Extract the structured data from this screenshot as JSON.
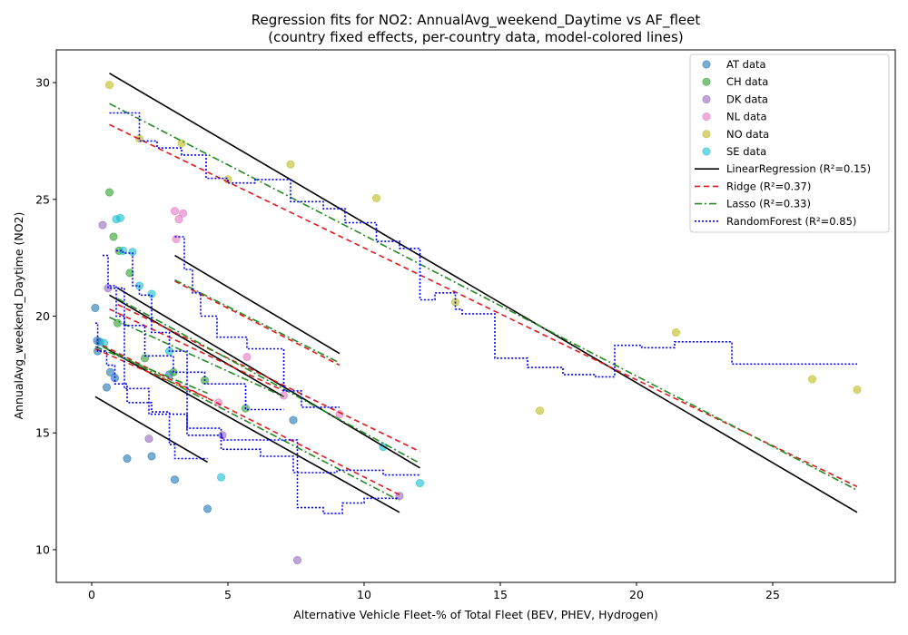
{
  "chart_data": {
    "type": "scatter",
    "title": "Regression fits for NO2: AnnualAvg_weekend_Daytime vs AF_fleet",
    "subtitle": "(country fixed effects, per-country data, model-colored lines)",
    "xlabel": "Alternative Vehicle Fleet-% of Total Fleet (BEV, PHEV, Hydrogen)",
    "ylabel": "AnnualAvg_weekend_Daytime (NO2)",
    "xlim": [
      -1.3,
      29.5
    ],
    "ylim": [
      8.6,
      31.4
    ],
    "xticks": [
      0,
      5,
      10,
      15,
      20,
      25
    ],
    "yticks": [
      10,
      15,
      20,
      25,
      30
    ],
    "grid": false,
    "legend_position": "top-right",
    "scatter_series": [
      {
        "name": "AT data",
        "color": "#1f77b4",
        "points": [
          [
            0.13,
            20.35
          ],
          [
            0.2,
            18.95
          ],
          [
            0.22,
            18.5
          ],
          [
            0.3,
            18.9
          ],
          [
            0.55,
            16.95
          ],
          [
            0.68,
            17.6
          ],
          [
            0.85,
            17.35
          ],
          [
            1.3,
            13.9
          ],
          [
            2.2,
            14.0
          ],
          [
            3.05,
            13.0
          ],
          [
            4.25,
            11.75
          ],
          [
            7.4,
            15.55
          ],
          [
            2.85,
            17.5
          ]
        ]
      },
      {
        "name": "CH data",
        "color": "#2ca02c",
        "points": [
          [
            0.65,
            25.3
          ],
          [
            0.8,
            23.4
          ],
          [
            1.0,
            22.8
          ],
          [
            1.4,
            21.85
          ],
          [
            0.95,
            19.7
          ],
          [
            1.95,
            18.2
          ],
          [
            3.0,
            17.6
          ],
          [
            4.15,
            17.25
          ],
          [
            5.65,
            16.05
          ]
        ]
      },
      {
        "name": "DK data",
        "color": "#9467bd",
        "points": [
          [
            0.4,
            23.9
          ],
          [
            0.6,
            21.2
          ],
          [
            2.1,
            14.75
          ],
          [
            4.8,
            14.9
          ],
          [
            7.55,
            9.55
          ],
          [
            11.3,
            12.3
          ]
        ]
      },
      {
        "name": "NL data",
        "color": "#e377c2",
        "points": [
          [
            3.05,
            24.5
          ],
          [
            3.2,
            24.15
          ],
          [
            3.35,
            24.4
          ],
          [
            3.1,
            23.3
          ],
          [
            5.7,
            18.25
          ],
          [
            4.65,
            16.3
          ],
          [
            7.05,
            16.6
          ],
          [
            9.1,
            15.8
          ]
        ]
      },
      {
        "name": "NO data",
        "color": "#bcbd22",
        "points": [
          [
            0.65,
            29.9
          ],
          [
            1.75,
            27.6
          ],
          [
            3.3,
            27.4
          ],
          [
            5.0,
            25.85
          ],
          [
            7.3,
            26.5
          ],
          [
            10.45,
            25.05
          ],
          [
            13.35,
            20.6
          ],
          [
            16.45,
            15.95
          ],
          [
            21.45,
            19.3
          ],
          [
            26.45,
            17.3
          ],
          [
            28.1,
            16.85
          ]
        ]
      },
      {
        "name": "SE data",
        "color": "#17becf",
        "points": [
          [
            0.9,
            24.15
          ],
          [
            1.05,
            24.2
          ],
          [
            1.15,
            22.8
          ],
          [
            1.5,
            22.75
          ],
          [
            1.75,
            21.3
          ],
          [
            2.2,
            20.95
          ],
          [
            0.45,
            18.85
          ],
          [
            2.85,
            18.5
          ],
          [
            4.75,
            13.1
          ],
          [
            10.7,
            14.4
          ],
          [
            12.05,
            12.85
          ]
        ]
      }
    ],
    "fit_lines": [
      {
        "name": "LinearRegression (R²=0.15)",
        "color": "#000000",
        "dash": "",
        "segments": [
          [
            [
              0.65,
              30.4
            ],
            [
              28.1,
              11.6
            ]
          ],
          [
            [
              3.05,
              22.6
            ],
            [
              9.1,
              18.4
            ]
          ],
          [
            [
              0.65,
              20.9
            ],
            [
              7.05,
              16.55
            ]
          ],
          [
            [
              0.95,
              21.2
            ],
            [
              12.05,
              13.5
            ]
          ],
          [
            [
              0.4,
              18.7
            ],
            [
              11.3,
              11.6
            ]
          ],
          [
            [
              0.13,
              16.55
            ],
            [
              4.25,
              13.75
            ]
          ]
        ]
      },
      {
        "name": "Ridge (R²=0.37)",
        "color": "#e31a1c",
        "dash": "6,4",
        "segments": [
          [
            [
              0.65,
              28.2
            ],
            [
              28.1,
              12.7
            ]
          ],
          [
            [
              3.05,
              21.5
            ],
            [
              9.1,
              17.9
            ]
          ],
          [
            [
              0.65,
              20.3
            ],
            [
              7.05,
              16.8
            ]
          ],
          [
            [
              0.95,
              20.5
            ],
            [
              12.05,
              14.2
            ]
          ],
          [
            [
              0.4,
              18.75
            ],
            [
              11.3,
              12.35
            ]
          ],
          [
            [
              0.13,
              18.6
            ],
            [
              4.25,
              16.5
            ]
          ]
        ]
      },
      {
        "name": "Lasso (R²=0.33)",
        "color": "#228b22",
        "dash": "8,3,2,3",
        "segments": [
          [
            [
              0.65,
              29.1
            ],
            [
              28.1,
              12.55
            ]
          ],
          [
            [
              3.05,
              21.55
            ],
            [
              9.1,
              18.0
            ]
          ],
          [
            [
              0.65,
              19.95
            ],
            [
              7.05,
              16.55
            ]
          ],
          [
            [
              0.95,
              20.75
            ],
            [
              12.05,
              13.7
            ]
          ],
          [
            [
              0.4,
              18.7
            ],
            [
              11.3,
              12.1
            ]
          ],
          [
            [
              0.13,
              18.7
            ],
            [
              4.25,
              16.7
            ]
          ]
        ]
      }
    ],
    "step_lines": [
      {
        "name": "RandomForest (R²=0.85)",
        "color": "#0000ff",
        "dash": "2,2",
        "paths": [
          [
            [
              0.65,
              28.7
            ],
            [
              1.75,
              28.7
            ],
            [
              1.75,
              27.5
            ],
            [
              2.4,
              27.5
            ],
            [
              2.4,
              27.2
            ],
            [
              3.3,
              27.2
            ],
            [
              3.3,
              26.9
            ],
            [
              4.2,
              26.9
            ],
            [
              4.2,
              25.9
            ],
            [
              5.0,
              25.9
            ],
            [
              5.0,
              25.7
            ],
            [
              6.0,
              25.7
            ],
            [
              6.0,
              25.85
            ],
            [
              7.3,
              25.85
            ],
            [
              7.3,
              24.9
            ],
            [
              8.5,
              24.9
            ],
            [
              8.5,
              24.6
            ],
            [
              9.3,
              24.6
            ],
            [
              9.3,
              24.0
            ],
            [
              10.45,
              24.0
            ],
            [
              10.45,
              23.2
            ],
            [
              11.3,
              23.2
            ],
            [
              11.3,
              22.9
            ],
            [
              12.05,
              22.9
            ],
            [
              12.05,
              20.7
            ],
            [
              12.6,
              20.7
            ],
            [
              12.6,
              21.0
            ],
            [
              13.35,
              21.0
            ],
            [
              13.35,
              20.3
            ],
            [
              13.6,
              20.3
            ],
            [
              13.6,
              20.1
            ],
            [
              14.8,
              20.1
            ],
            [
              14.8,
              18.2
            ],
            [
              16.0,
              18.2
            ],
            [
              16.0,
              17.8
            ],
            [
              17.3,
              17.8
            ],
            [
              17.3,
              17.5
            ],
            [
              18.5,
              17.5
            ],
            [
              18.5,
              17.4
            ],
            [
              19.2,
              17.4
            ],
            [
              19.2,
              18.75
            ],
            [
              20.2,
              18.75
            ],
            [
              20.2,
              18.65
            ],
            [
              21.4,
              18.65
            ],
            [
              21.4,
              18.9
            ],
            [
              23.5,
              18.9
            ],
            [
              23.5,
              17.95
            ],
            [
              28.1,
              17.95
            ]
          ],
          [
            [
              3.05,
              23.4
            ],
            [
              3.4,
              23.4
            ],
            [
              3.4,
              22.0
            ],
            [
              3.7,
              22.0
            ],
            [
              3.7,
              21.0
            ],
            [
              4.0,
              21.0
            ],
            [
              4.0,
              20.0
            ],
            [
              4.6,
              20.0
            ],
            [
              4.6,
              19.1
            ],
            [
              5.7,
              19.1
            ],
            [
              5.7,
              18.6
            ],
            [
              7.05,
              18.6
            ],
            [
              7.05,
              16.8
            ],
            [
              7.7,
              16.8
            ],
            [
              7.7,
              16.1
            ],
            [
              9.1,
              16.1
            ]
          ],
          [
            [
              0.65,
              21.3
            ],
            [
              0.9,
              21.3
            ],
            [
              0.9,
              20.0
            ],
            [
              1.2,
              20.0
            ],
            [
              1.2,
              19.6
            ],
            [
              1.95,
              19.6
            ],
            [
              1.95,
              18.3
            ],
            [
              3.0,
              18.3
            ],
            [
              3.0,
              17.6
            ],
            [
              4.15,
              17.6
            ],
            [
              4.15,
              17.1
            ],
            [
              5.65,
              17.1
            ],
            [
              5.65,
              16.0
            ],
            [
              7.05,
              16.0
            ]
          ],
          [
            [
              0.9,
              22.8
            ],
            [
              1.15,
              22.8
            ],
            [
              1.15,
              22.7
            ],
            [
              1.5,
              22.7
            ],
            [
              1.5,
              21.3
            ],
            [
              1.75,
              21.3
            ],
            [
              1.75,
              20.9
            ],
            [
              2.2,
              20.9
            ],
            [
              2.2,
              19.3
            ],
            [
              2.85,
              19.3
            ],
            [
              2.85,
              18.5
            ],
            [
              3.5,
              18.5
            ],
            [
              3.5,
              15.2
            ],
            [
              4.75,
              15.2
            ],
            [
              4.75,
              14.3
            ],
            [
              6.2,
              14.3
            ],
            [
              6.2,
              14.0
            ],
            [
              7.4,
              14.0
            ],
            [
              7.4,
              13.3
            ],
            [
              9.0,
              13.3
            ],
            [
              9.0,
              13.4
            ],
            [
              10.7,
              13.4
            ],
            [
              10.7,
              13.2
            ],
            [
              12.05,
              13.2
            ]
          ],
          [
            [
              0.4,
              22.6
            ],
            [
              0.6,
              22.6
            ],
            [
              0.6,
              21.2
            ],
            [
              1.2,
              21.2
            ],
            [
              1.2,
              16.9
            ],
            [
              2.1,
              16.9
            ],
            [
              2.1,
              15.8
            ],
            [
              3.5,
              15.8
            ],
            [
              3.5,
              14.9
            ],
            [
              4.8,
              14.9
            ],
            [
              4.8,
              14.7
            ],
            [
              7.55,
              14.7
            ],
            [
              7.55,
              11.8
            ],
            [
              8.5,
              11.8
            ],
            [
              8.5,
              11.55
            ],
            [
              9.2,
              11.55
            ],
            [
              9.2,
              12.0
            ],
            [
              10.0,
              12.0
            ],
            [
              10.0,
              12.2
            ],
            [
              11.3,
              12.2
            ]
          ],
          [
            [
              0.13,
              19.7
            ],
            [
              0.22,
              19.7
            ],
            [
              0.22,
              18.5
            ],
            [
              0.55,
              18.5
            ],
            [
              0.55,
              17.9
            ],
            [
              0.85,
              17.9
            ],
            [
              0.85,
              17.1
            ],
            [
              1.3,
              17.1
            ],
            [
              1.3,
              16.3
            ],
            [
              2.2,
              16.3
            ],
            [
              2.2,
              15.9
            ],
            [
              2.85,
              15.9
            ],
            [
              2.85,
              14.5
            ],
            [
              3.05,
              14.5
            ],
            [
              3.05,
              13.9
            ],
            [
              4.25,
              13.9
            ]
          ]
        ]
      }
    ]
  }
}
